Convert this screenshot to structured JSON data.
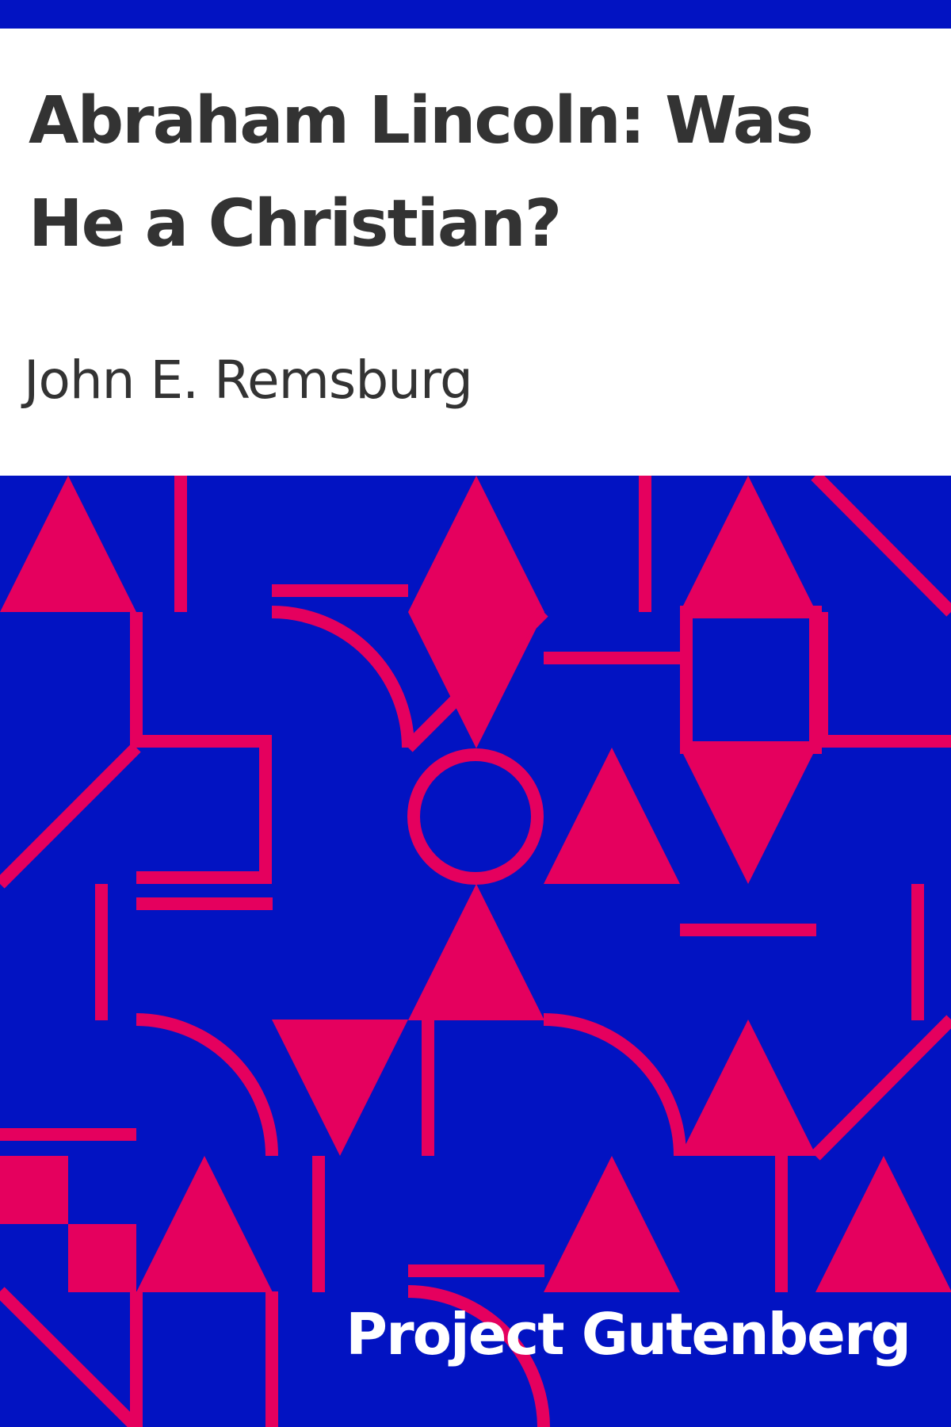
{
  "book": {
    "title": "Abraham Lincoln: Was He a Christian?",
    "author": "John E. Remsburg",
    "publisher": "Project Gutenberg"
  },
  "colors": {
    "background": "#ffffff",
    "band": "#0213c2",
    "pattern_background": "#0213c2",
    "pattern_shape": "#e5005e",
    "title_text": "#333333",
    "author_text": "#333333",
    "publisher_text": "#ffffff"
  },
  "pattern_icons": [
    "triangle-up-icon",
    "triangle-down-icon",
    "circle-ring-icon",
    "quarter-arc-icon",
    "diagonal-bar-icon",
    "square-icon",
    "bar-icon"
  ]
}
